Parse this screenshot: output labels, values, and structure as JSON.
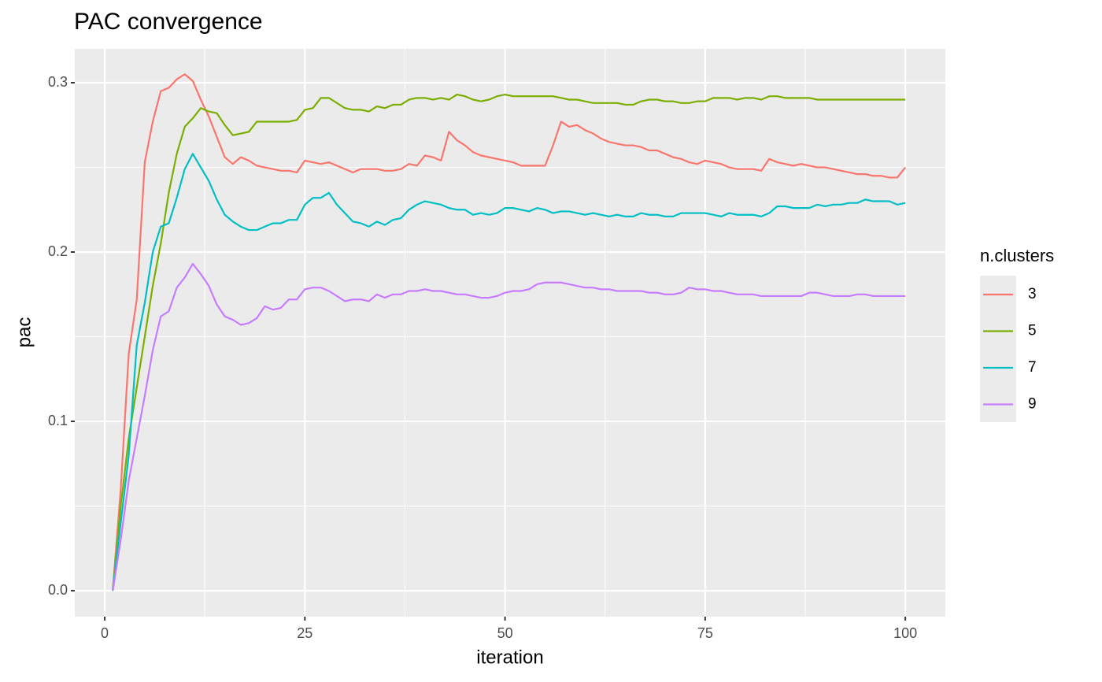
{
  "chart_data": {
    "type": "line",
    "title": "PAC convergence",
    "x_label": "iteration",
    "y_label": "pac",
    "legend_title": "n.clusters",
    "grid": true,
    "x": [
      1,
      2,
      3,
      4,
      5,
      6,
      7,
      8,
      9,
      10,
      11,
      12,
      13,
      14,
      15,
      16,
      17,
      18,
      19,
      20,
      21,
      22,
      23,
      24,
      25,
      26,
      27,
      28,
      29,
      30,
      31,
      32,
      33,
      34,
      35,
      36,
      37,
      38,
      39,
      40,
      41,
      42,
      43,
      44,
      45,
      46,
      47,
      48,
      49,
      50,
      51,
      52,
      53,
      54,
      55,
      56,
      57,
      58,
      59,
      60,
      61,
      62,
      63,
      64,
      65,
      66,
      67,
      68,
      69,
      70,
      71,
      72,
      73,
      74,
      75,
      76,
      77,
      78,
      79,
      80,
      81,
      82,
      83,
      84,
      85,
      86,
      87,
      88,
      89,
      90,
      91,
      92,
      93,
      94,
      95,
      96,
      97,
      98,
      99,
      100
    ],
    "xlim": [
      -3.74,
      105
    ],
    "xticks": [
      0,
      25,
      50,
      75,
      100
    ],
    "ylim": [
      -0.0153,
      0.32
    ],
    "yticks": [
      {
        "value": 0,
        "label": "0.0"
      },
      0.1,
      0.2,
      0.3
    ],
    "series": [
      {
        "name": "3",
        "color": "#f8766d",
        "values": [
          0,
          0.06,
          0.14,
          0.172,
          0.253,
          0.277,
          0.295,
          0.297,
          0.302,
          0.305,
          0.301,
          0.29,
          0.28,
          0.268,
          0.256,
          0.252,
          0.256,
          0.254,
          0.251,
          0.25,
          0.249,
          0.248,
          0.248,
          0.247,
          0.254,
          0.253,
          0.252,
          0.253,
          0.251,
          0.249,
          0.247,
          0.249,
          0.249,
          0.249,
          0.248,
          0.248,
          0.249,
          0.252,
          0.251,
          0.257,
          0.256,
          0.254,
          0.271,
          0.266,
          0.263,
          0.259,
          0.257,
          0.256,
          0.255,
          0.254,
          0.253,
          0.251,
          0.251,
          0.251,
          0.251,
          0.263,
          0.277,
          0.274,
          0.275,
          0.272,
          0.27,
          0.267,
          0.265,
          0.264,
          0.263,
          0.263,
          0.262,
          0.26,
          0.26,
          0.258,
          0.256,
          0.255,
          0.253,
          0.252,
          0.254,
          0.253,
          0.252,
          0.25,
          0.249,
          0.249,
          0.249,
          0.248,
          0.255,
          0.253,
          0.252,
          0.251,
          0.252,
          0.251,
          0.25,
          0.25,
          0.249,
          0.248,
          0.247,
          0.246,
          0.246,
          0.245,
          0.245,
          0.244,
          0.244,
          0.25
        ]
      },
      {
        "name": "5",
        "color": "#7cae00",
        "values": [
          0,
          0.05,
          0.09,
          0.12,
          0.15,
          0.18,
          0.205,
          0.235,
          0.258,
          0.274,
          0.279,
          0.285,
          0.283,
          0.282,
          0.275,
          0.269,
          0.27,
          0.271,
          0.277,
          0.277,
          0.277,
          0.277,
          0.277,
          0.278,
          0.284,
          0.285,
          0.291,
          0.291,
          0.288,
          0.285,
          0.284,
          0.284,
          0.283,
          0.286,
          0.285,
          0.287,
          0.287,
          0.29,
          0.291,
          0.291,
          0.29,
          0.291,
          0.29,
          0.293,
          0.292,
          0.29,
          0.289,
          0.29,
          0.292,
          0.293,
          0.292,
          0.292,
          0.292,
          0.292,
          0.292,
          0.292,
          0.291,
          0.29,
          0.29,
          0.289,
          0.288,
          0.288,
          0.288,
          0.288,
          0.287,
          0.287,
          0.289,
          0.29,
          0.29,
          0.289,
          0.289,
          0.288,
          0.288,
          0.289,
          0.289,
          0.291,
          0.291,
          0.291,
          0.29,
          0.291,
          0.291,
          0.29,
          0.292,
          0.292,
          0.291,
          0.291,
          0.291,
          0.291,
          0.29,
          0.29,
          0.29,
          0.29,
          0.29,
          0.29,
          0.29,
          0.29,
          0.29,
          0.29,
          0.29,
          0.29
        ]
      },
      {
        "name": "7",
        "color": "#00bfc4",
        "values": [
          0,
          0.04,
          0.08,
          0.145,
          0.17,
          0.2,
          0.215,
          0.217,
          0.232,
          0.249,
          0.258,
          0.25,
          0.242,
          0.231,
          0.222,
          0.218,
          0.215,
          0.213,
          0.213,
          0.215,
          0.217,
          0.217,
          0.219,
          0.219,
          0.228,
          0.232,
          0.232,
          0.235,
          0.228,
          0.223,
          0.218,
          0.217,
          0.215,
          0.218,
          0.216,
          0.219,
          0.22,
          0.225,
          0.228,
          0.23,
          0.229,
          0.228,
          0.226,
          0.225,
          0.225,
          0.222,
          0.223,
          0.222,
          0.223,
          0.226,
          0.226,
          0.225,
          0.224,
          0.226,
          0.225,
          0.223,
          0.224,
          0.224,
          0.223,
          0.222,
          0.223,
          0.222,
          0.221,
          0.222,
          0.221,
          0.221,
          0.223,
          0.222,
          0.222,
          0.221,
          0.221,
          0.223,
          0.223,
          0.223,
          0.223,
          0.222,
          0.221,
          0.223,
          0.222,
          0.222,
          0.222,
          0.221,
          0.223,
          0.227,
          0.227,
          0.226,
          0.226,
          0.226,
          0.228,
          0.227,
          0.228,
          0.228,
          0.229,
          0.229,
          0.231,
          0.23,
          0.23,
          0.23,
          0.228,
          0.229
        ]
      },
      {
        "name": "9",
        "color": "#c77cff",
        "values": [
          0,
          0.03,
          0.065,
          0.09,
          0.115,
          0.142,
          0.162,
          0.165,
          0.179,
          0.185,
          0.193,
          0.187,
          0.18,
          0.169,
          0.162,
          0.16,
          0.157,
          0.158,
          0.161,
          0.168,
          0.166,
          0.167,
          0.172,
          0.172,
          0.178,
          0.179,
          0.179,
          0.177,
          0.174,
          0.171,
          0.172,
          0.172,
          0.171,
          0.175,
          0.173,
          0.175,
          0.175,
          0.177,
          0.177,
          0.178,
          0.177,
          0.177,
          0.176,
          0.175,
          0.175,
          0.174,
          0.173,
          0.173,
          0.174,
          0.176,
          0.177,
          0.177,
          0.178,
          0.181,
          0.182,
          0.182,
          0.182,
          0.181,
          0.18,
          0.179,
          0.179,
          0.178,
          0.178,
          0.177,
          0.177,
          0.177,
          0.177,
          0.176,
          0.176,
          0.175,
          0.175,
          0.176,
          0.179,
          0.178,
          0.178,
          0.177,
          0.177,
          0.176,
          0.175,
          0.175,
          0.175,
          0.174,
          0.174,
          0.174,
          0.174,
          0.174,
          0.174,
          0.176,
          0.176,
          0.175,
          0.174,
          0.174,
          0.174,
          0.175,
          0.175,
          0.174,
          0.174,
          0.174,
          0.174,
          0.174
        ]
      }
    ]
  }
}
